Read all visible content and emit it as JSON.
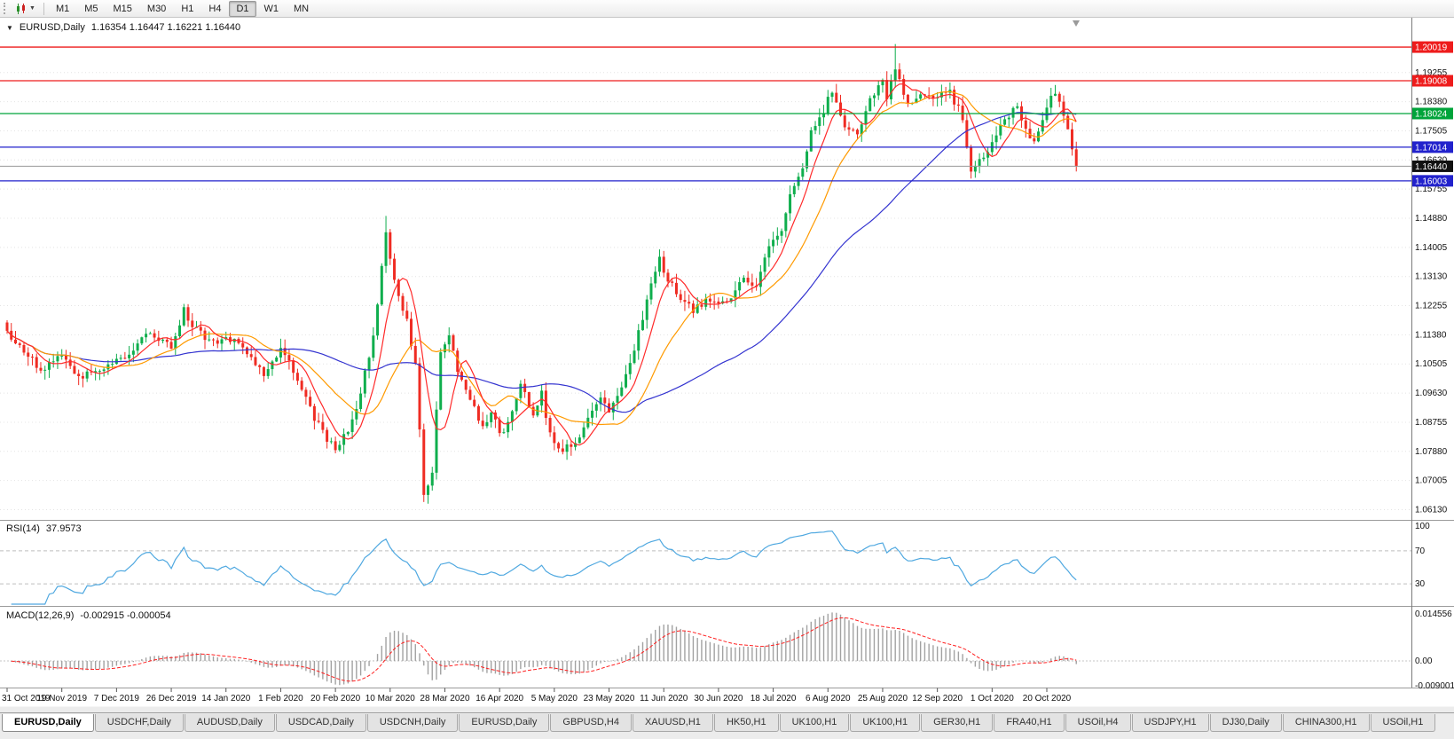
{
  "toolbar": {
    "timeframes": [
      "M1",
      "M5",
      "M15",
      "M30",
      "H1",
      "H4",
      "D1",
      "W1",
      "MN"
    ],
    "active_timeframe": "D1"
  },
  "chart": {
    "symbol_period": "EURUSD,Daily",
    "ohlc": "1.16354 1.16447 1.16221 1.16440",
    "open": "1.16354",
    "high": "1.16447",
    "low": "1.16221",
    "close": "1.16440"
  },
  "rsi": {
    "title": "RSI(14)",
    "value": "37.9573",
    "axis_labels": [
      "100",
      "70",
      "30"
    ]
  },
  "macd": {
    "title": "MACD(12,26,9)",
    "values": "-0.002915 -0.000054",
    "axis_labels": [
      "0.014556",
      "0.00",
      "-0.009001"
    ]
  },
  "tabs": [
    "EURUSD,Daily",
    "USDCHF,Daily",
    "AUDUSD,Daily",
    "USDCAD,Daily",
    "USDCNH,Daily",
    "EURUSD,Daily",
    "GBPUSD,H4",
    "XAUUSD,H1",
    "HK50,H1",
    "UK100,H1",
    "UK100,H1",
    "GER30,H1",
    "FRA40,H1",
    "USOil,H4",
    "USDJPY,H1",
    "DJ30,Daily",
    "CHINA300,H1",
    "USOil,H1"
  ],
  "active_tab_index": 0,
  "chart_data": {
    "type": "candlestick",
    "symbol": "EURUSD",
    "period": "Daily",
    "price_range_mapping": {
      "top": 1.209,
      "bottom": 1.0585
    },
    "price_ticks": [
      "1.19255",
      "1.18380",
      "1.17505",
      "1.16630",
      "1.15755",
      "1.14880",
      "1.14005",
      "1.13130",
      "1.12255",
      "1.11380",
      "1.10505",
      "1.09630",
      "1.08755",
      "1.07880",
      "1.07005",
      "1.06130"
    ],
    "levels": [
      {
        "price": 1.20019,
        "label": "1.20019",
        "color": "#ee1c1c"
      },
      {
        "price": 1.19008,
        "label": "1.19008",
        "color": "#ee1c1c"
      },
      {
        "price": 1.18024,
        "label": "1.18024",
        "color": "#00a43b"
      },
      {
        "price": 1.17014,
        "label": "1.17014",
        "color": "#2222cc"
      },
      {
        "price": 1.16003,
        "label": "1.16003",
        "color": "#2222cc"
      }
    ],
    "current_price": {
      "value": 1.1644,
      "label": "1.16440"
    },
    "last_close": 1.1644,
    "date_labels": [
      "31 Oct 2019",
      "19 Nov 2019",
      "7 Dec 2019",
      "26 Dec 2019",
      "14 Jan 2020",
      "1 Feb 2020",
      "20 Feb 2020",
      "10 Mar 2020",
      "28 Mar 2020",
      "16 Apr 2020",
      "5 May 2020",
      "23 May 2020",
      "11 Jun 2020",
      "30 Jun 2020",
      "18 Jul 2020",
      "6 Aug 2020",
      "25 Aug 2020",
      "12 Sep 2020",
      "1 Oct 2020",
      "20 Oct 2020"
    ],
    "candles_per_label": 13,
    "price_anchors": [
      [
        0,
        1.115
      ],
      [
        4,
        1.1085
      ],
      [
        8,
        1.1035
      ],
      [
        13,
        1.1075
      ],
      [
        17,
        1.101
      ],
      [
        21,
        1.1035
      ],
      [
        26,
        1.106
      ],
      [
        30,
        1.109
      ],
      [
        34,
        1.1145
      ],
      [
        39,
        1.1095
      ],
      [
        42,
        1.1215
      ],
      [
        44,
        1.1165
      ],
      [
        48,
        1.112
      ],
      [
        52,
        1.113
      ],
      [
        57,
        1.1085
      ],
      [
        61,
        1.102
      ],
      [
        65,
        1.1095
      ],
      [
        69,
        1.1
      ],
      [
        73,
        1.088
      ],
      [
        78,
        1.0795
      ],
      [
        81,
        1.085
      ],
      [
        84,
        1.096
      ],
      [
        87,
        1.1135
      ],
      [
        90,
        1.145
      ],
      [
        92,
        1.13
      ],
      [
        95,
        1.1185
      ],
      [
        97,
        1.105
      ],
      [
        99,
        1.066
      ],
      [
        101,
        1.072
      ],
      [
        103,
        1.108
      ],
      [
        105,
        1.114
      ],
      [
        107,
        1.103
      ],
      [
        110,
        1.0945
      ],
      [
        113,
        1.086
      ],
      [
        115,
        1.09
      ],
      [
        117,
        1.084
      ],
      [
        119,
        1.0875
      ],
      [
        122,
        1.0985
      ],
      [
        125,
        1.0895
      ],
      [
        127,
        1.0965
      ],
      [
        129,
        1.084
      ],
      [
        132,
        1.079
      ],
      [
        135,
        1.0815
      ],
      [
        138,
        1.089
      ],
      [
        141,
        1.095
      ],
      [
        143,
        1.09
      ],
      [
        146,
        1.0985
      ],
      [
        149,
        1.1095
      ],
      [
        152,
        1.1245
      ],
      [
        155,
        1.1375
      ],
      [
        157,
        1.13
      ],
      [
        160,
        1.1245
      ],
      [
        163,
        1.1205
      ],
      [
        166,
        1.125
      ],
      [
        169,
        1.1232
      ],
      [
        172,
        1.125
      ],
      [
        175,
        1.131
      ],
      [
        178,
        1.1285
      ],
      [
        181,
        1.14
      ],
      [
        184,
        1.1445
      ],
      [
        186,
        1.156
      ],
      [
        189,
        1.164
      ],
      [
        191,
        1.175
      ],
      [
        193,
        1.1785
      ],
      [
        196,
        1.187
      ],
      [
        199,
        1.176
      ],
      [
        202,
        1.1735
      ],
      [
        205,
        1.185
      ],
      [
        208,
        1.1905
      ],
      [
        209,
        1.184
      ],
      [
        211,
        1.194
      ],
      [
        213,
        1.1855
      ],
      [
        215,
        1.183
      ],
      [
        218,
        1.186
      ],
      [
        221,
        1.1845
      ],
      [
        224,
        1.187
      ],
      [
        227,
        1.1785
      ],
      [
        229,
        1.1625
      ],
      [
        231,
        1.166
      ],
      [
        234,
        1.172
      ],
      [
        237,
        1.1785
      ],
      [
        240,
        1.1825
      ],
      [
        242,
        1.176
      ],
      [
        244,
        1.1715
      ],
      [
        246,
        1.178
      ],
      [
        248,
        1.186
      ],
      [
        250,
        1.184
      ],
      [
        252,
        1.176
      ],
      [
        253,
        1.169
      ],
      [
        254,
        1.1644
      ]
    ],
    "spikes": [
      {
        "i": 90,
        "high": 1.1495
      },
      {
        "i": 99,
        "low": 1.0636
      },
      {
        "i": 211,
        "high": 1.2011
      }
    ],
    "moving_averages": [
      {
        "period": 50,
        "color": "#3434d0",
        "name": "slow-ma"
      },
      {
        "period": 18,
        "color": "#ff9a00",
        "name": "medium-ma"
      },
      {
        "period": 7,
        "color": "#ff2a2a",
        "name": "fast-ma"
      }
    ],
    "colors": {
      "bull": "#0fae4d",
      "bear": "#ef2c23",
      "rsi": "#4fa8e0",
      "macd_hist": "#a2a2a2",
      "macd_signal": "#ff2020",
      "grid": "#e4e4e4",
      "current_line": "#9a9a9a",
      "axis_text": "#111111"
    },
    "indicators": {
      "rsi": {
        "period": 14,
        "value": 37.9573,
        "levels": [
          70,
          30
        ]
      },
      "macd": {
        "fast": 12,
        "slow": 26,
        "signal": 9,
        "main": -0.002915,
        "signal_value": -5.4e-05
      }
    }
  }
}
